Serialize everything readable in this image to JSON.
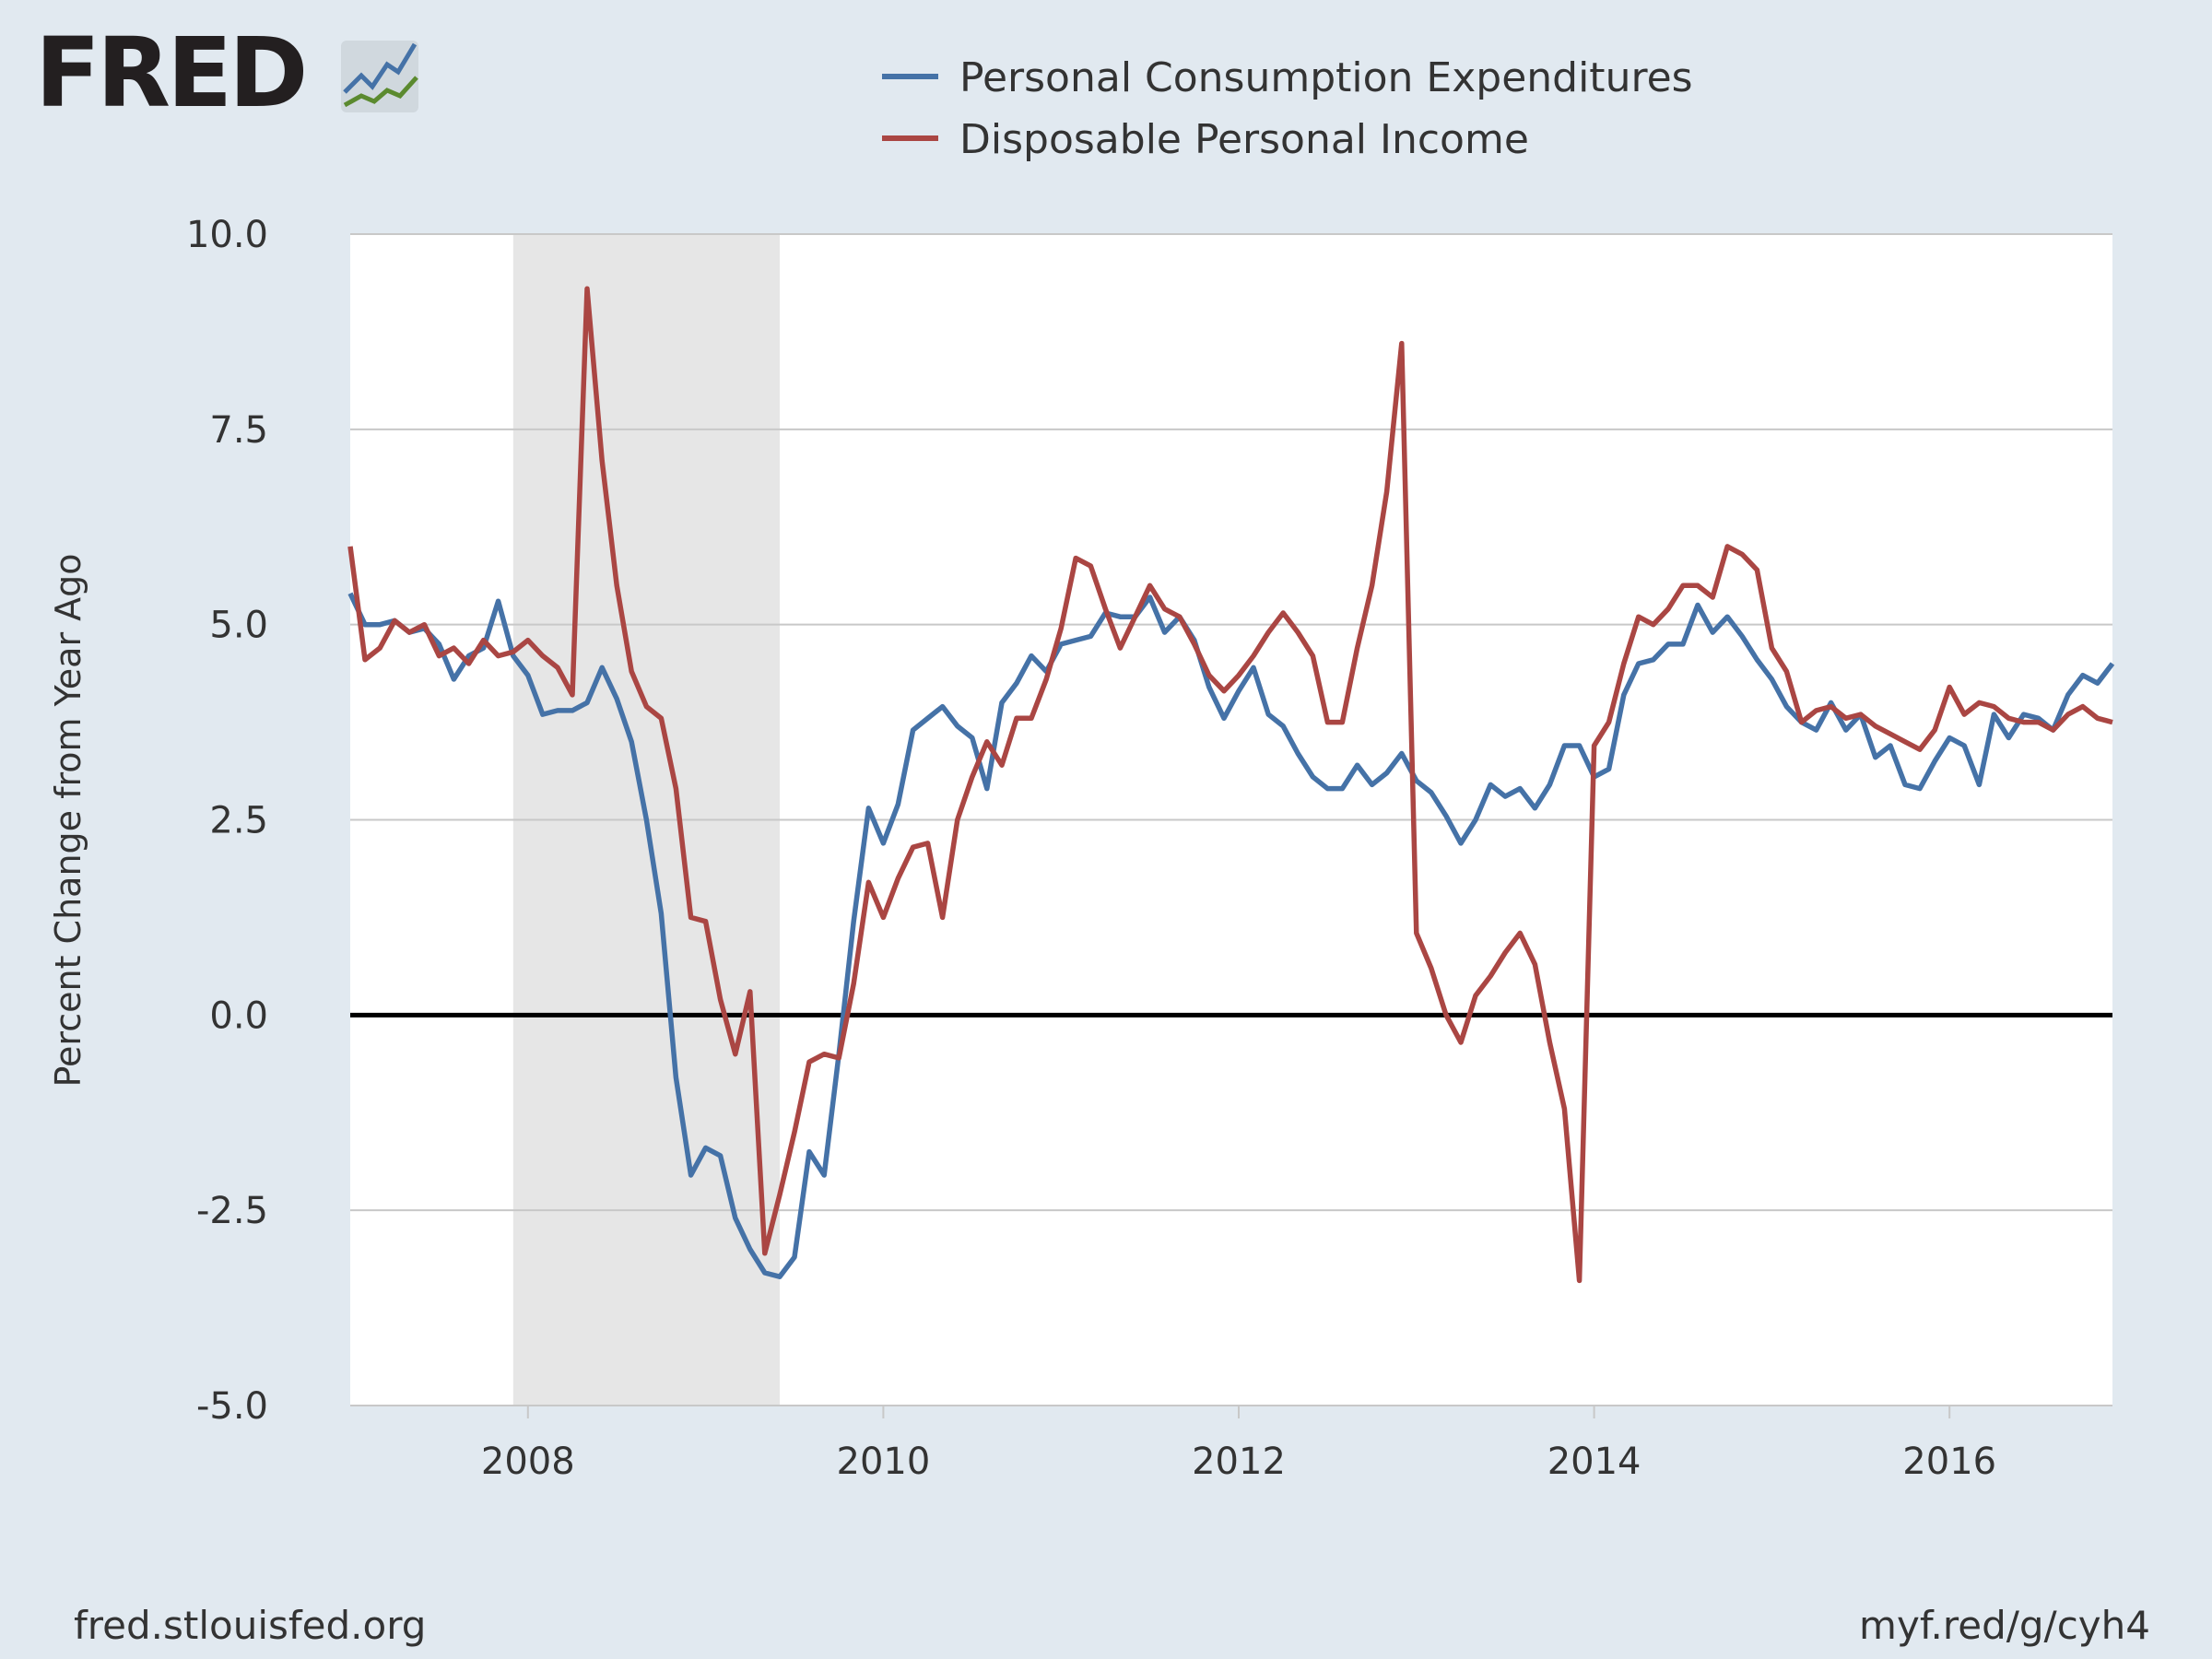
{
  "logo": "FRED",
  "source": "fred.stlouisfed.org",
  "link": "myf.red/g/cyh4",
  "chart_data": {
    "type": "line",
    "y_label": "Percent Change from Year Ago",
    "x": [
      2007,
      2007.083,
      2007.167,
      2007.25,
      2007.333,
      2007.417,
      2007.5,
      2007.583,
      2007.667,
      2007.75,
      2007.833,
      2007.917,
      2008,
      2008.083,
      2008.167,
      2008.25,
      2008.333,
      2008.417,
      2008.5,
      2008.583,
      2008.667,
      2008.75,
      2008.833,
      2008.917,
      2009,
      2009.083,
      2009.167,
      2009.25,
      2009.333,
      2009.417,
      2009.5,
      2009.583,
      2009.667,
      2009.75,
      2009.833,
      2009.917,
      2010,
      2010.083,
      2010.167,
      2010.25,
      2010.333,
      2010.417,
      2010.5,
      2010.583,
      2010.667,
      2010.75,
      2010.833,
      2010.917,
      2011,
      2011.083,
      2011.167,
      2011.25,
      2011.333,
      2011.417,
      2011.5,
      2011.583,
      2011.667,
      2011.75,
      2011.833,
      2011.917,
      2012,
      2012.083,
      2012.167,
      2012.25,
      2012.333,
      2012.417,
      2012.5,
      2012.583,
      2012.667,
      2012.75,
      2012.833,
      2012.917,
      2013,
      2013.083,
      2013.167,
      2013.25,
      2013.333,
      2013.417,
      2013.5,
      2013.583,
      2013.667,
      2013.75,
      2013.833,
      2013.917,
      2014,
      2014.083,
      2014.167,
      2014.25,
      2014.333,
      2014.417,
      2014.5,
      2014.583,
      2014.667,
      2014.75,
      2014.833,
      2014.917,
      2015,
      2015.083,
      2015.167,
      2015.25,
      2015.333,
      2015.417,
      2015.5,
      2015.583,
      2015.667,
      2015.75,
      2015.833,
      2015.917,
      2016,
      2016.083,
      2016.167,
      2016.25,
      2016.333,
      2016.417,
      2016.5,
      2016.583,
      2016.667,
      2016.75,
      2016.833,
      2016.917
    ],
    "series": [
      {
        "name": "Personal Consumption Expenditures",
        "color": "#4572a7",
        "values": [
          5.4,
          5.0,
          5.0,
          5.05,
          4.9,
          4.95,
          4.75,
          4.3,
          4.6,
          4.7,
          5.3,
          4.6,
          4.35,
          3.85,
          3.9,
          3.9,
          4.0,
          4.45,
          4.05,
          3.5,
          2.5,
          1.3,
          -0.8,
          -2.05,
          -1.7,
          -1.8,
          -2.6,
          -3.0,
          -3.3,
          -3.35,
          -3.1,
          -1.75,
          -2.05,
          -0.5,
          1.2,
          2.65,
          2.2,
          2.7,
          3.65,
          3.8,
          3.95,
          3.7,
          3.55,
          2.9,
          4.0,
          4.25,
          4.6,
          4.4,
          4.75,
          4.8,
          4.85,
          5.15,
          5.1,
          5.1,
          5.35,
          4.9,
          5.1,
          4.8,
          4.2,
          3.8,
          4.15,
          4.45,
          3.85,
          3.7,
          3.35,
          3.05,
          2.9,
          2.9,
          3.2,
          2.95,
          3.1,
          3.35,
          3.0,
          2.85,
          2.55,
          2.2,
          2.5,
          2.95,
          2.8,
          2.9,
          2.65,
          2.95,
          3.45,
          3.45,
          3.05,
          3.15,
          4.1,
          4.5,
          4.55,
          4.75,
          4.75,
          5.25,
          4.9,
          5.1,
          4.85,
          4.55,
          4.3,
          3.95,
          3.75,
          3.65,
          4.0,
          3.65,
          3.85,
          3.3,
          3.45,
          2.95,
          2.9,
          3.25,
          3.55,
          3.45,
          2.95,
          3.85,
          3.55,
          3.85,
          3.8,
          3.65,
          4.1,
          4.35,
          4.25,
          4.5
        ]
      },
      {
        "name": "Disposable Personal Income",
        "color": "#aa4643",
        "values": [
          6.0,
          4.55,
          4.7,
          5.05,
          4.9,
          5.0,
          4.6,
          4.7,
          4.5,
          4.8,
          4.6,
          4.65,
          4.8,
          4.6,
          4.45,
          4.1,
          9.3,
          7.1,
          5.5,
          4.4,
          3.95,
          3.8,
          2.9,
          1.25,
          1.2,
          0.2,
          -0.5,
          0.3,
          -3.05,
          -2.3,
          -1.5,
          -0.6,
          -0.5,
          -0.55,
          0.4,
          1.7,
          1.25,
          1.75,
          2.15,
          2.2,
          1.25,
          2.5,
          3.05,
          3.5,
          3.2,
          3.8,
          3.8,
          4.3,
          4.95,
          5.85,
          5.75,
          5.2,
          4.7,
          5.1,
          5.5,
          5.2,
          5.1,
          4.75,
          4.35,
          4.15,
          4.35,
          4.6,
          4.9,
          5.15,
          4.9,
          4.6,
          3.75,
          3.75,
          4.7,
          5.5,
          6.7,
          8.6,
          1.05,
          0.6,
          0.0,
          -0.35,
          0.25,
          0.5,
          0.8,
          1.05,
          0.65,
          -0.35,
          -1.2,
          -3.4,
          3.45,
          3.75,
          4.5,
          5.1,
          5.0,
          5.2,
          5.5,
          5.5,
          5.35,
          6.0,
          5.9,
          5.7,
          4.7,
          4.4,
          3.75,
          3.9,
          3.95,
          3.8,
          3.85,
          3.7,
          3.6,
          3.5,
          3.4,
          3.65,
          4.2,
          3.85,
          4.0,
          3.95,
          3.8,
          3.75,
          3.75,
          3.65,
          3.85,
          3.95,
          3.8,
          3.75
        ]
      }
    ],
    "recession": {
      "start": 2007.917,
      "end": 2009.417
    },
    "xlim": [
      2007,
      2016.917
    ],
    "xticks": [
      2008,
      2010,
      2012,
      2014,
      2016
    ],
    "ylim": [
      -5,
      10
    ],
    "yticks": [
      {
        "value": -5,
        "label": "-5.0"
      },
      {
        "value": -2.5,
        "label": "-2.5"
      },
      {
        "value": 0,
        "label": "0.0"
      },
      {
        "value": 2.5,
        "label": "2.5"
      },
      {
        "value": 5,
        "label": "5.0"
      },
      {
        "value": 7.5,
        "label": "7.5"
      },
      {
        "value": 10,
        "label": "10.0"
      }
    ],
    "grid": true
  }
}
